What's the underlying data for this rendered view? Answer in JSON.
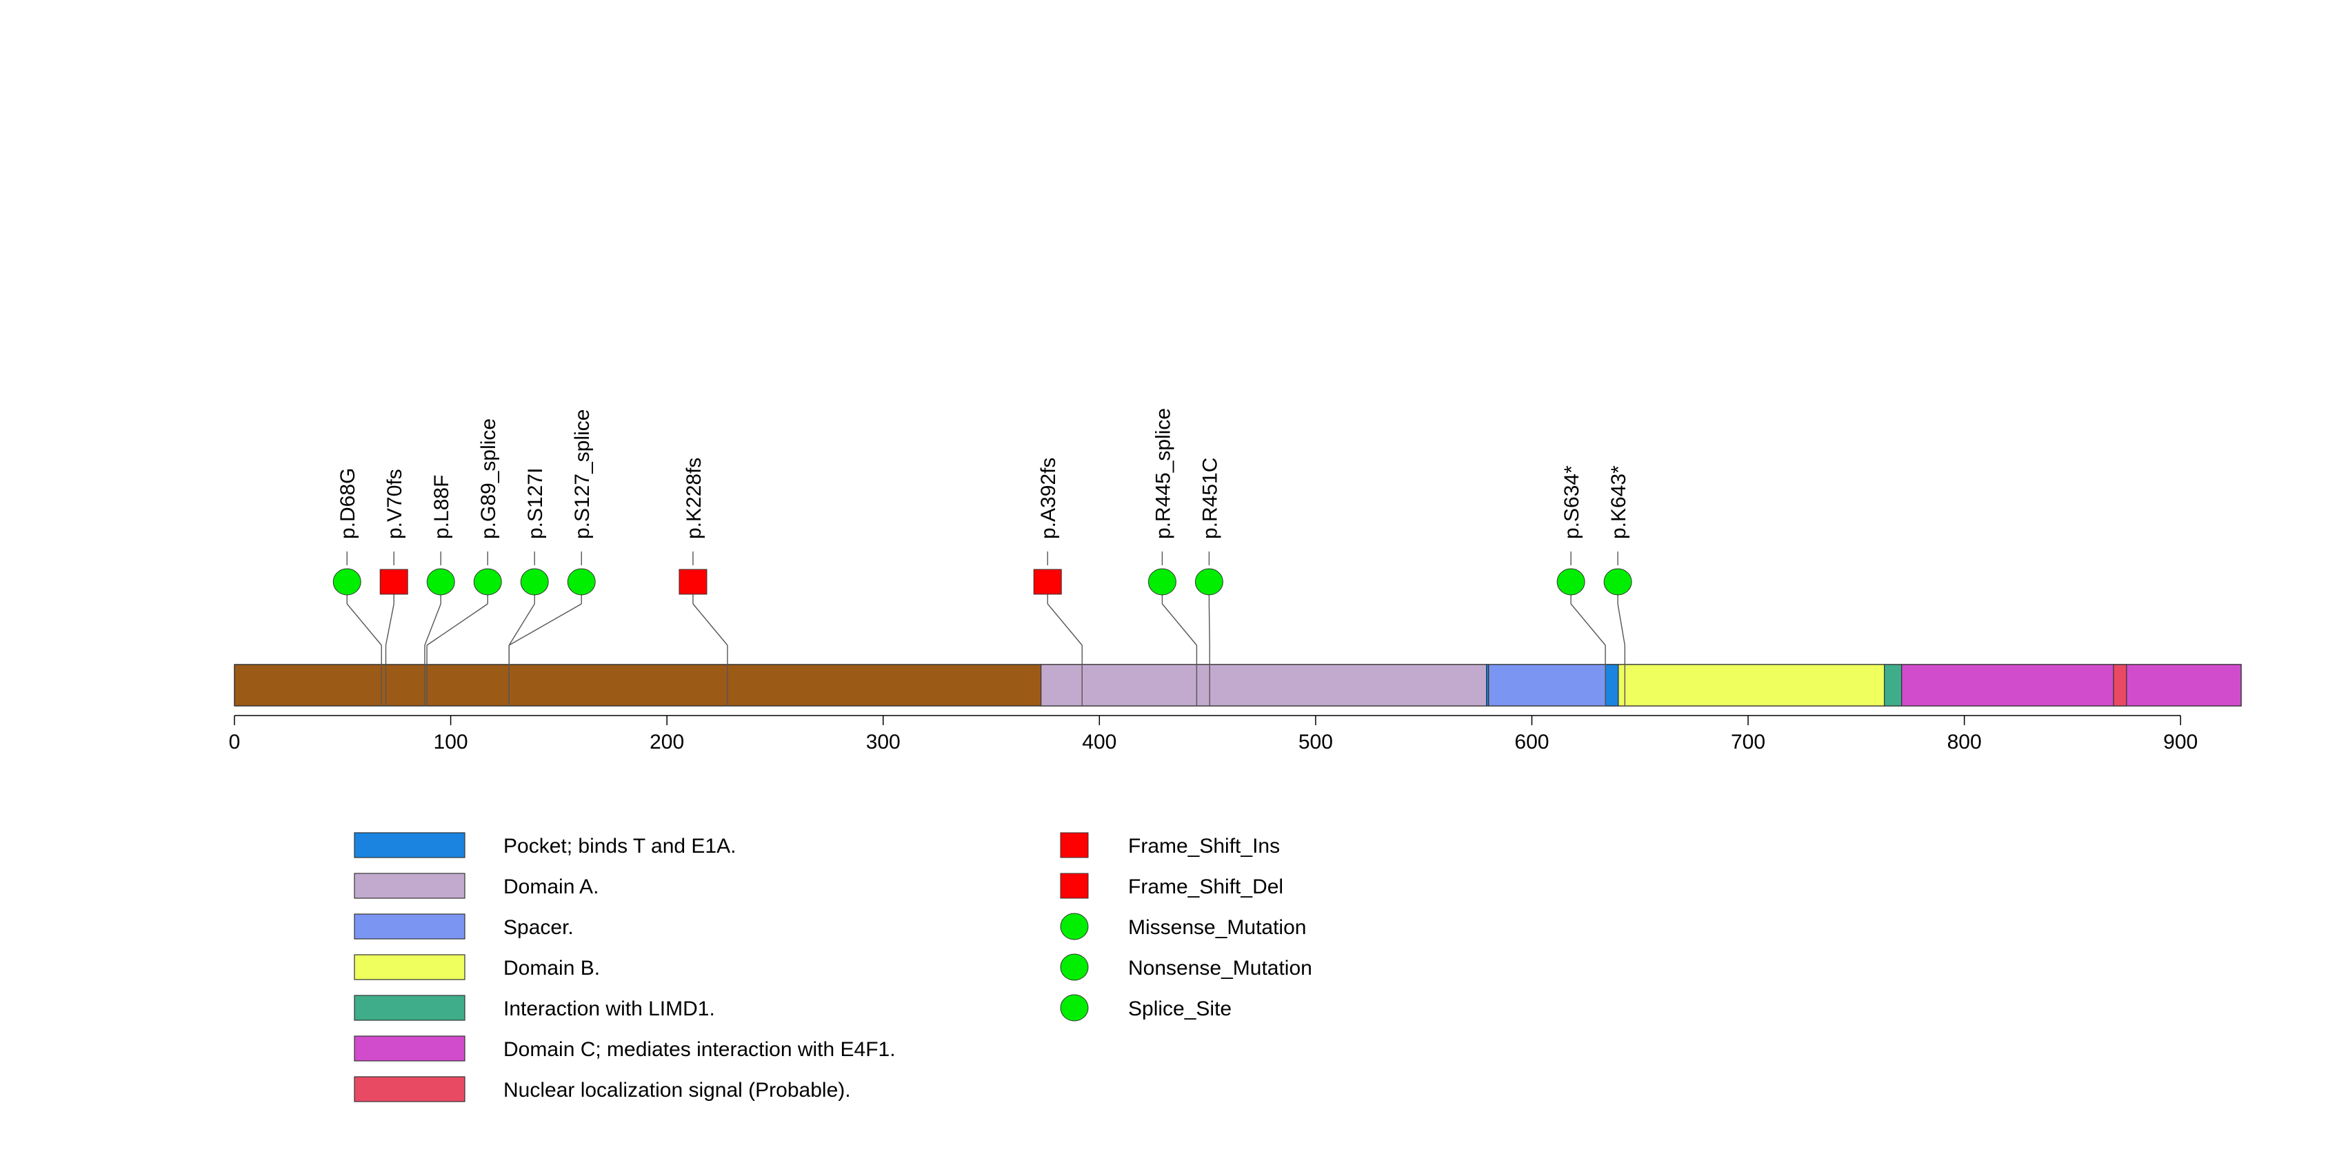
{
  "chart_data": {
    "type": "lollipop",
    "protein_length": 928,
    "x_axis": {
      "min": 0,
      "max": 928,
      "ticks": [
        0,
        100,
        200,
        300,
        400,
        500,
        600,
        700,
        800,
        900
      ],
      "tick_labels": [
        "0",
        "100",
        "200",
        "300",
        "400",
        "500",
        "600",
        "700",
        "800",
        "900"
      ]
    },
    "backbone_color": "#9C5A17",
    "domains": [
      {
        "name": "Domain A.",
        "start": 373,
        "end": 579,
        "color": "#C2AACE"
      },
      {
        "name": "Pocket; binds T and E1A.",
        "start": 579,
        "end": 580,
        "color": "#1A84E0"
      },
      {
        "name": "Spacer.",
        "start": 580,
        "end": 640,
        "color": "#7B96F2"
      },
      {
        "name": "Pocket; binds T and E1A.",
        "start": 634,
        "end": 640,
        "color": "#1A84E0"
      },
      {
        "name": "Domain B.",
        "start": 640,
        "end": 763,
        "color": "#EEFF5E"
      },
      {
        "name": "Interaction with LIMD1.",
        "start": 763,
        "end": 771,
        "color": "#3FAD89"
      },
      {
        "name": "Domain C; mediates interaction with E4F1.",
        "start": 771,
        "end": 928,
        "color": "#D14CCC"
      },
      {
        "name": "Nuclear localization signal (Probable).",
        "start": 869,
        "end": 875,
        "color": "#E84A64"
      }
    ],
    "mutations": [
      {
        "label": "p.D68G",
        "position": 68,
        "type": "Missense_Mutation",
        "shape": "circle"
      },
      {
        "label": "p.V70fs",
        "position": 70,
        "type": "Frame_Shift_Del",
        "shape": "square"
      },
      {
        "label": "p.L88F",
        "position": 88,
        "type": "Missense_Mutation",
        "shape": "circle"
      },
      {
        "label": "p.G89_splice",
        "position": 89,
        "type": "Splice_Site",
        "shape": "circle"
      },
      {
        "label": "p.S127I",
        "position": 127,
        "type": "Missense_Mutation",
        "shape": "circle"
      },
      {
        "label": "p.S127_splice",
        "position": 127,
        "type": "Splice_Site",
        "shape": "circle"
      },
      {
        "label": "p.K228fs",
        "position": 228,
        "type": "Frame_Shift_Ins",
        "shape": "square"
      },
      {
        "label": "p.A392fs",
        "position": 392,
        "type": "Frame_Shift_Del",
        "shape": "square"
      },
      {
        "label": "p.R445_splice",
        "position": 445,
        "type": "Splice_Site",
        "shape": "circle"
      },
      {
        "label": "p.R451C",
        "position": 451,
        "type": "Missense_Mutation",
        "shape": "circle"
      },
      {
        "label": "p.S634*",
        "position": 634,
        "type": "Nonsense_Mutation",
        "shape": "circle"
      },
      {
        "label": "p.K643*",
        "position": 643,
        "type": "Nonsense_Mutation",
        "shape": "circle"
      }
    ],
    "domain_legend": [
      {
        "label": "Pocket; binds T and E1A.",
        "color": "#1A84E0"
      },
      {
        "label": "Domain A.",
        "color": "#C2AACE"
      },
      {
        "label": "Spacer.",
        "color": "#7B96F2"
      },
      {
        "label": "Domain B.",
        "color": "#EEFF5E"
      },
      {
        "label": "Interaction with LIMD1.",
        "color": "#3FAD89"
      },
      {
        "label": "Domain C; mediates interaction with E4F1.",
        "color": "#D14CCC"
      },
      {
        "label": "Nuclear localization signal (Probable).",
        "color": "#E84A64"
      }
    ],
    "mutation_legend": [
      {
        "label": "Frame_Shift_Ins",
        "shape": "square",
        "color": "#FF0000"
      },
      {
        "label": "Frame_Shift_Del",
        "shape": "square",
        "color": "#FF0000"
      },
      {
        "label": "Missense_Mutation",
        "shape": "circle",
        "color": "#00EE00"
      },
      {
        "label": "Nonsense_Mutation",
        "shape": "circle",
        "color": "#00EE00"
      },
      {
        "label": "Splice_Site",
        "shape": "circle",
        "color": "#00EE00"
      }
    ],
    "colors": {
      "square": "#FF0000",
      "circle": "#00EE00",
      "line": "#555555",
      "outline": "#333333"
    }
  }
}
